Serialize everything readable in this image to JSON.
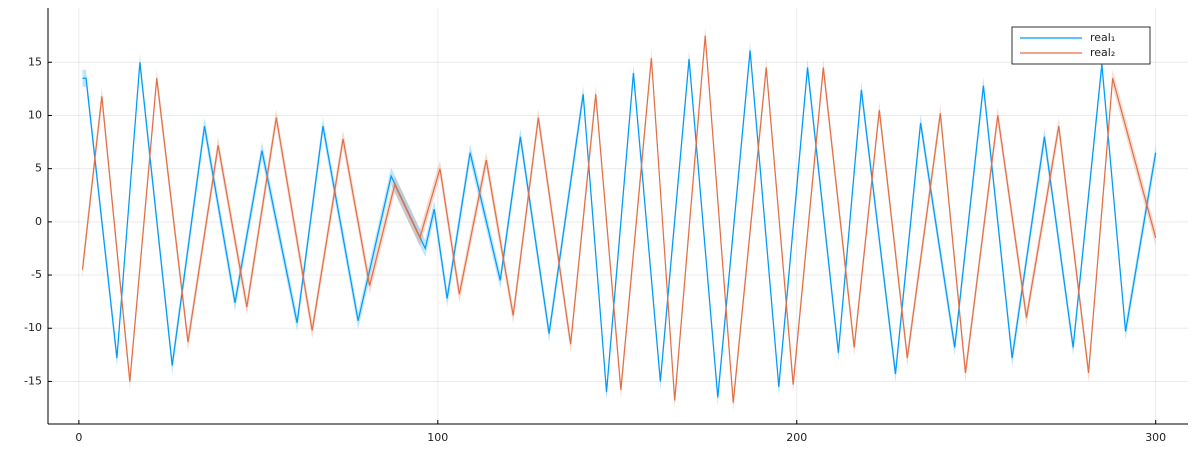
{
  "chart_data": {
    "type": "line",
    "xlim": [
      -8.6,
      309
    ],
    "ylim": [
      -19,
      20.1
    ],
    "xticks": [
      0,
      100,
      200,
      300
    ],
    "yticks": [
      -15,
      -10,
      -5,
      0,
      5,
      10,
      15
    ],
    "grid": true,
    "legend": "top-right",
    "series": [
      {
        "name": "real₁",
        "color": "#009af9",
        "band": 0.8,
        "x": [
          1,
          2,
          10.6,
          17,
          26,
          35,
          43.5,
          51,
          60.8,
          68,
          77.8,
          87,
          96.5,
          99,
          102.6,
          109,
          117.4,
          123,
          131,
          140.5,
          147,
          154.5,
          162,
          170,
          178,
          187,
          195,
          203,
          211.6,
          218,
          227.5,
          234.5,
          244,
          252,
          260,
          269,
          277,
          285,
          291.6,
          300
        ],
        "values": [
          13.5,
          13.5,
          -12.8,
          15,
          -13.5,
          9,
          -7.6,
          6.7,
          -9.5,
          9,
          -9.3,
          4.3,
          -2.5,
          1.2,
          -7.2,
          6.5,
          -5.5,
          8,
          -10.5,
          12,
          -16,
          14,
          -15,
          15.3,
          -16.5,
          16.1,
          -15.5,
          14.5,
          -12.3,
          12.4,
          -14.3,
          9.3,
          -11.8,
          12.8,
          -12.8,
          8,
          -11.8,
          14.8,
          -10.3,
          6.5
        ]
      },
      {
        "name": "real₂",
        "color": "#e26f46",
        "band": 0.8,
        "x": [
          1,
          6.4,
          14.2,
          21.7,
          30.4,
          38.8,
          46.8,
          55,
          65,
          73.6,
          81,
          88,
          95,
          100.6,
          106,
          113.5,
          121,
          128,
          137,
          144,
          151,
          159.5,
          166,
          174.5,
          182.3,
          191.5,
          199,
          207.4,
          216,
          223,
          230.8,
          240,
          247,
          256,
          264,
          273,
          281.3,
          288,
          300
        ],
        "values": [
          -4.5,
          11.8,
          -15,
          13.5,
          -11.3,
          7.2,
          -8,
          9.8,
          -10.2,
          7.8,
          -6,
          3.5,
          -1.5,
          5,
          -6.8,
          5.8,
          -8.8,
          9.8,
          -11.5,
          12,
          -15.8,
          15.4,
          -16.8,
          17.5,
          -17,
          14.5,
          -15.3,
          14.5,
          -11.8,
          10.5,
          -12.8,
          10.2,
          -14.2,
          10,
          -9,
          9,
          -14.2,
          13.5,
          -1.5
        ]
      }
    ]
  }
}
